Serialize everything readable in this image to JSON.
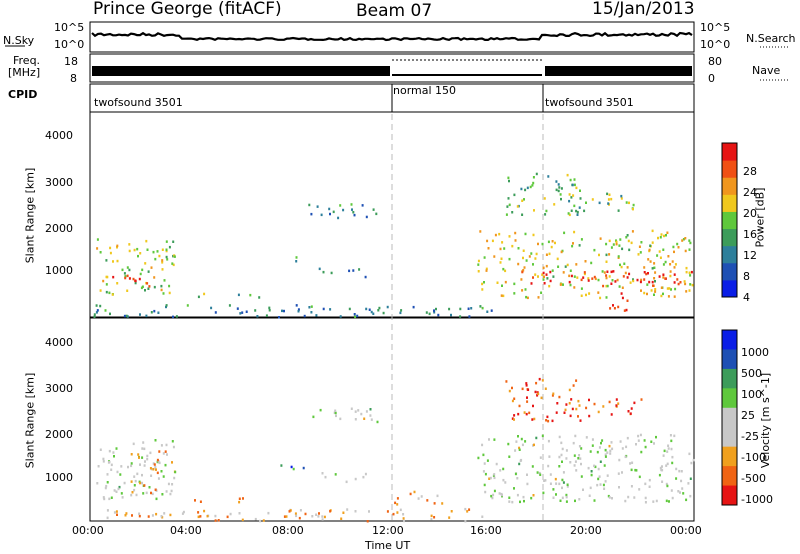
{
  "header": {
    "station": "Prince George (fitACF)",
    "beam": "Beam 07",
    "date": "15/Jan/2013"
  },
  "panels": {
    "nsky_label": "N.Sky",
    "nsky_ticks": [
      "10^5",
      "10^0"
    ],
    "nsearch_label": "N.Search",
    "nsearch_ticks": [
      "10^5",
      "10^0"
    ],
    "freq_label_line1": "Freq.",
    "freq_label_line2": "[MHz]",
    "freq_ticks": [
      "18",
      "8"
    ],
    "nave_label": "Nave",
    "nave_ticks": [
      "80",
      "0"
    ],
    "cpid_label": "CPID",
    "cpid_segments": [
      {
        "name": "twofsound 3501",
        "start": 0,
        "end": 12
      },
      {
        "name": "normal 150",
        "start": 12,
        "end": 18
      },
      {
        "name": "twofsound 3501",
        "start": 18,
        "end": 24
      }
    ]
  },
  "colors": {
    "power_scale": [
      "#0a1ee6",
      "#1e50b4",
      "#2d7f9b",
      "#3c9c5a",
      "#5fc83c",
      "#f0c81e",
      "#f0961e",
      "#f05014",
      "#e61414"
    ],
    "velocity_scale": [
      "#0a1ee6",
      "#1e50b4",
      "#3c9c5a",
      "#5fc83c",
      "#c8c8c8",
      "#c8c8c8",
      "#f0a01e",
      "#f06414",
      "#e61414"
    ]
  },
  "chart_data": [
    {
      "type": "heatmap",
      "name": "power",
      "xlabel": "",
      "ylabel": "Slant Range [km]",
      "xlim": [
        0,
        24
      ],
      "ylim": [
        180,
        4650
      ],
      "yticks": [
        "1000",
        "2000",
        "3000",
        "4000"
      ],
      "colorbar_label": "Power [dB]",
      "colorbar_ticks": [
        "4",
        "8",
        "12",
        "16",
        "20",
        "24",
        "28"
      ],
      "scatter_regions": [
        {
          "t0": 0.2,
          "t1": 3.4,
          "r0": 650,
          "r1": 1900,
          "level": 0.55
        },
        {
          "t0": 0.2,
          "t1": 2.3,
          "r0": 850,
          "r1": 1100,
          "level": 0.95
        },
        {
          "t0": 7.8,
          "t1": 8.3,
          "r0": 1300,
          "r1": 1500,
          "level": 0.35
        },
        {
          "t0": 8.6,
          "t1": 11.4,
          "r0": 2350,
          "r1": 2700,
          "level": 0.3
        },
        {
          "t0": 9.0,
          "t1": 11.0,
          "r0": 1050,
          "r1": 1250,
          "level": 0.3
        },
        {
          "t0": 4.0,
          "t1": 7.0,
          "r0": 600,
          "r1": 700,
          "level": 0.4
        },
        {
          "t0": 0.0,
          "t1": 16.0,
          "r0": 180,
          "r1": 450,
          "level": 0.3
        },
        {
          "t0": 16.5,
          "t1": 19.5,
          "r0": 2400,
          "r1": 3350,
          "level": 0.45
        },
        {
          "t0": 19.0,
          "t1": 22.0,
          "r0": 2500,
          "r1": 2900,
          "level": 0.45
        },
        {
          "t0": 15.4,
          "t1": 24.0,
          "r0": 600,
          "r1": 2100,
          "level": 0.6
        },
        {
          "t0": 17.0,
          "t1": 24.0,
          "r0": 850,
          "r1": 1200,
          "level": 0.95
        },
        {
          "t0": 20.5,
          "t1": 21.5,
          "r0": 300,
          "r1": 800,
          "level": 1.0
        }
      ]
    },
    {
      "type": "heatmap",
      "name": "velocity",
      "xlabel": "Time UT",
      "ylabel": "Slant Range [km]",
      "xlim": [
        0,
        24
      ],
      "ylim": [
        180,
        4650
      ],
      "xticks": [
        "00:00",
        "04:00",
        "08:00",
        "12:00",
        "16:00",
        "20:00",
        "00:00"
      ],
      "yticks": [
        "1000",
        "2000",
        "3000",
        "4000"
      ],
      "colorbar_label": "Velocity [m s^-1]",
      "colorbar_ticks": [
        "1000",
        "500",
        "100",
        "25",
        "-25",
        "-100",
        "-500",
        "-1000"
      ],
      "scatter_regions": [
        {
          "t0": 0.2,
          "t1": 3.4,
          "r0": 650,
          "r1": 2000,
          "level": 0.5
        },
        {
          "t0": 1.5,
          "t1": 3.2,
          "r0": 800,
          "r1": 1800,
          "level": 0.7
        },
        {
          "t0": 4.0,
          "t1": 7.0,
          "r0": 600,
          "r1": 700,
          "level": 0.72
        },
        {
          "t0": 7.5,
          "t1": 8.5,
          "r0": 1300,
          "r1": 1500,
          "level": 0.2
        },
        {
          "t0": 8.6,
          "t1": 11.4,
          "r0": 2350,
          "r1": 2700,
          "level": 0.5
        },
        {
          "t0": 9.0,
          "t1": 11.0,
          "r0": 1050,
          "r1": 1250,
          "level": 0.5
        },
        {
          "t0": 0.0,
          "t1": 16.0,
          "r0": 180,
          "r1": 450,
          "level": 0.7
        },
        {
          "t0": 12.0,
          "t1": 14.0,
          "r0": 550,
          "r1": 850,
          "level": 0.75
        },
        {
          "t0": 16.5,
          "t1": 19.5,
          "r0": 2400,
          "r1": 3350,
          "level": 0.85
        },
        {
          "t0": 19.0,
          "t1": 22.0,
          "r0": 2500,
          "r1": 2900,
          "level": 0.85
        },
        {
          "t0": 15.4,
          "t1": 24.0,
          "r0": 600,
          "r1": 2100,
          "level": 0.5
        }
      ]
    }
  ]
}
